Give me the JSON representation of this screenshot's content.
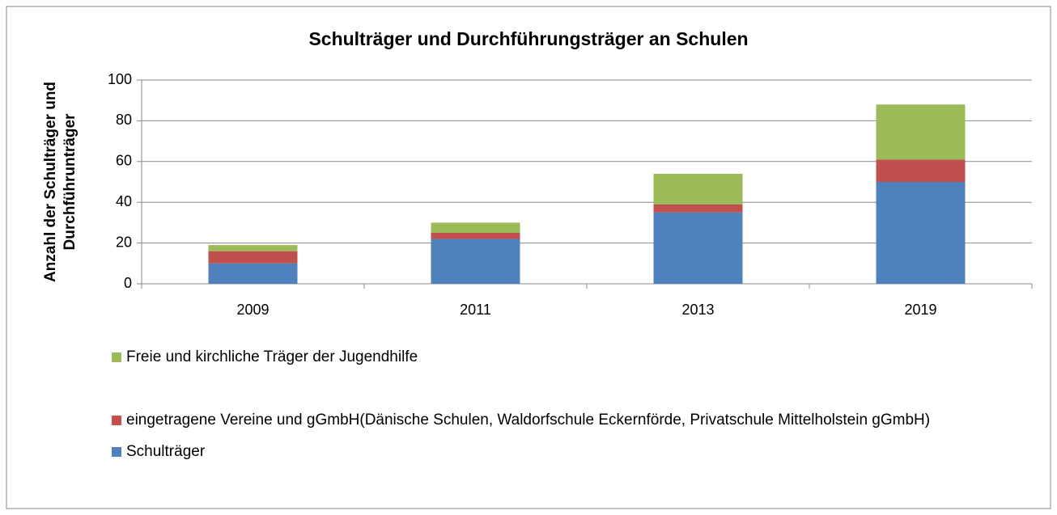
{
  "chart_data": {
    "type": "stacked_bar",
    "title": "Schulträger und Durchführungsträger an Schulen",
    "y_label": "Anzahl der Schulträger und Durchführunträger",
    "categories": [
      "2009",
      "2011",
      "2013",
      "2019"
    ],
    "series": [
      {
        "name": "Schulträger",
        "color": "#4f81bd",
        "values": [
          10,
          22,
          35,
          50
        ]
      },
      {
        "name": "eingetragene Vereine und gGmbH(Dänische Schulen, Waldorfschule Eckernförde, Privatschule Mittelholstein gGmbH)",
        "color": "#c0504d",
        "values": [
          6,
          3,
          4,
          11
        ]
      },
      {
        "name": "Freie und kirchliche Träger der Jugendhilfe",
        "color": "#9bbb59",
        "values": [
          3,
          5,
          15,
          27
        ]
      }
    ],
    "ylim": [
      0,
      100
    ],
    "yticks": [
      0,
      20,
      40,
      60,
      80,
      100
    ],
    "grid": true
  }
}
